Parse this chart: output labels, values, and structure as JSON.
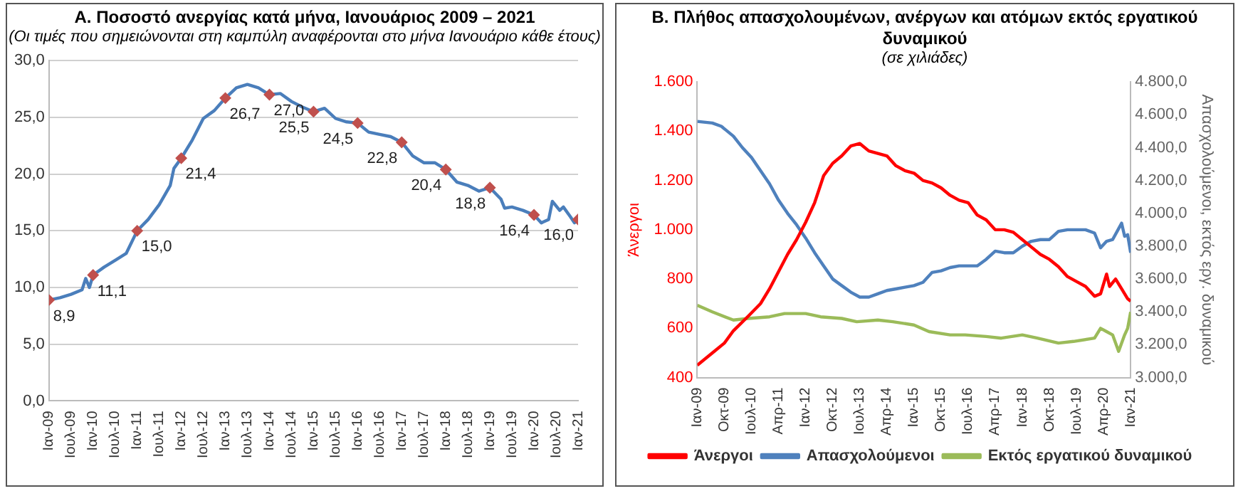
{
  "chart_data": [
    {
      "type": "line",
      "title": "Α. Ποσοστό ανεργίας κατά μήνα, Ιανουάριος 2009 – 2021",
      "subtitle": "(Οι τιμές που σημειώνονται στη καμπύλη αναφέρονται στο μήνα Ιανουάριο κάθε έτους)",
      "xlim": [
        "2009-01",
        "2021-01"
      ],
      "xticks": [
        {
          "value": "2009-01",
          "label": "Ιαν-09"
        },
        {
          "value": "2009-07",
          "label": "Ιουλ-09"
        },
        {
          "value": "2010-01",
          "label": "Ιαν-10"
        },
        {
          "value": "2010-07",
          "label": "Ιουλ-10"
        },
        {
          "value": "2011-01",
          "label": "Ιαν-11"
        },
        {
          "value": "2011-07",
          "label": "Ιουλ-11"
        },
        {
          "value": "2012-01",
          "label": "Ιαν-12"
        },
        {
          "value": "2012-07",
          "label": "Ιουλ-12"
        },
        {
          "value": "2013-01",
          "label": "Ιαν-13"
        },
        {
          "value": "2013-07",
          "label": "Ιουλ-13"
        },
        {
          "value": "2014-01",
          "label": "Ιαν-14"
        },
        {
          "value": "2014-07",
          "label": "Ιουλ-14"
        },
        {
          "value": "2015-01",
          "label": "Ιαν-15"
        },
        {
          "value": "2015-07",
          "label": "Ιουλ-15"
        },
        {
          "value": "2016-01",
          "label": "Ιαν-16"
        },
        {
          "value": "2016-07",
          "label": "Ιουλ-16"
        },
        {
          "value": "2017-01",
          "label": "Ιαν-17"
        },
        {
          "value": "2017-07",
          "label": "Ιουλ-17"
        },
        {
          "value": "2018-01",
          "label": "Ιαν-18"
        },
        {
          "value": "2018-07",
          "label": "Ιουλ-18"
        },
        {
          "value": "2019-01",
          "label": "Ιαν-19"
        },
        {
          "value": "2019-07",
          "label": "Ιουλ-19"
        },
        {
          "value": "2020-01",
          "label": "Ιαν-20"
        },
        {
          "value": "2020-07",
          "label": "Ιουλ-20"
        },
        {
          "value": "2021-01",
          "label": "Ιαν-21"
        }
      ],
      "ylim": [
        0,
        30
      ],
      "yticks": [
        {
          "value": 0,
          "label": "0,0"
        },
        {
          "value": 5,
          "label": "5,0"
        },
        {
          "value": 10,
          "label": "10,0"
        },
        {
          "value": 15,
          "label": "15,0"
        },
        {
          "value": 20,
          "label": "20,0"
        },
        {
          "value": 25,
          "label": "25,0"
        },
        {
          "value": 30,
          "label": "30,0"
        }
      ],
      "grid": "y",
      "legend": false,
      "series": [
        {
          "type": "line",
          "color": "#4a7ebb",
          "marker": "none",
          "x": [
            "2009-01",
            "2009-04",
            "2009-07",
            "2009-10",
            "2009-11",
            "2009-12",
            "2010-01",
            "2010-04",
            "2010-07",
            "2010-10",
            "2011-01",
            "2011-04",
            "2011-07",
            "2011-10",
            "2011-11",
            "2012-01",
            "2012-04",
            "2012-07",
            "2012-10",
            "2013-01",
            "2013-04",
            "2013-07",
            "2013-10",
            "2014-01",
            "2014-04",
            "2014-07",
            "2014-10",
            "2015-01",
            "2015-04",
            "2015-07",
            "2015-10",
            "2016-01",
            "2016-04",
            "2016-07",
            "2016-10",
            "2017-01",
            "2017-04",
            "2017-07",
            "2017-10",
            "2018-01",
            "2018-04",
            "2018-07",
            "2018-10",
            "2019-01",
            "2019-04",
            "2019-05",
            "2019-07",
            "2019-10",
            "2020-01",
            "2020-03",
            "2020-05",
            "2020-06",
            "2020-08",
            "2020-09",
            "2020-11",
            "2020-12",
            "2021-01"
          ],
          "values": [
            8.9,
            9.1,
            9.4,
            9.8,
            10.8,
            10.0,
            11.1,
            11.8,
            12.4,
            13.0,
            15.0,
            16.0,
            17.3,
            19.0,
            20.5,
            21.4,
            23.0,
            24.9,
            25.6,
            26.7,
            27.6,
            27.9,
            27.6,
            27.0,
            27.1,
            26.4,
            25.9,
            25.5,
            25.8,
            24.9,
            24.6,
            24.5,
            23.7,
            23.5,
            23.3,
            22.8,
            21.6,
            21.0,
            21.0,
            20.4,
            19.3,
            19.0,
            18.5,
            18.8,
            17.8,
            17.0,
            17.1,
            16.8,
            16.4,
            15.7,
            16.0,
            17.6,
            16.8,
            17.1,
            16.2,
            15.7,
            16.0
          ]
        },
        {
          "type": "scatter",
          "color": "#c0504d",
          "marker": "diamond",
          "x": [
            "2009-01",
            "2010-01",
            "2011-01",
            "2012-01",
            "2013-01",
            "2014-01",
            "2015-01",
            "2016-01",
            "2017-01",
            "2018-01",
            "2019-01",
            "2020-01",
            "2021-01"
          ],
          "values": [
            8.9,
            11.1,
            15.0,
            21.4,
            26.7,
            27.0,
            25.5,
            24.5,
            22.8,
            20.4,
            18.8,
            16.4,
            16.0
          ],
          "value_labels": [
            "8,9",
            "11,1",
            "15,0",
            "21,4",
            "26,7",
            "27,0",
            "25,5",
            "24,5",
            "22,8",
            "20,4",
            "18,8",
            "16,4",
            "16,0"
          ]
        }
      ]
    },
    {
      "type": "line",
      "title": "Β. Πλήθος απασχολουμένων, ανέργων και ατόμων εκτός εργατικού δυναμικού",
      "subtitle": "(σε χιλιάδες)",
      "ylabel": "Άνεργοι",
      "y2label": "Απασχολούμενοι, εκτός εργ. δυναμικού",
      "xlim": [
        "2009-01",
        "2021-01"
      ],
      "xticks": [
        {
          "value": "2009-01",
          "label": "Ιαν-09"
        },
        {
          "value": "2009-10",
          "label": "Οκτ-09"
        },
        {
          "value": "2010-07",
          "label": "Ιουλ-10"
        },
        {
          "value": "2011-04",
          "label": "Απρ-11"
        },
        {
          "value": "2012-01",
          "label": "Ιαν-12"
        },
        {
          "value": "2012-10",
          "label": "Οκτ-12"
        },
        {
          "value": "2013-07",
          "label": "Ιουλ-13"
        },
        {
          "value": "2014-04",
          "label": "Απρ-14"
        },
        {
          "value": "2015-01",
          "label": "Ιαν-15"
        },
        {
          "value": "2015-10",
          "label": "Οκτ-15"
        },
        {
          "value": "2016-07",
          "label": "Ιουλ-16"
        },
        {
          "value": "2017-04",
          "label": "Απρ-17"
        },
        {
          "value": "2018-01",
          "label": "Ιαν-18"
        },
        {
          "value": "2018-10",
          "label": "Οκτ-18"
        },
        {
          "value": "2019-07",
          "label": "Ιουλ-19"
        },
        {
          "value": "2020-04",
          "label": "Απρ-20"
        },
        {
          "value": "2021-01",
          "label": "Ιαν-21"
        }
      ],
      "ylim": [
        400,
        1600
      ],
      "yticks": [
        400,
        600,
        800,
        {
          "value": 1000,
          "label": "1.000"
        },
        {
          "value": 1200,
          "label": "1.200"
        },
        {
          "value": 1400,
          "label": "1.400"
        },
        {
          "value": 1600,
          "label": "1.600"
        }
      ],
      "y2lim": [
        3000,
        4800
      ],
      "y2ticks": [
        {
          "value": 3000,
          "label": "3.000,0"
        },
        {
          "value": 3200,
          "label": "3.200,0"
        },
        {
          "value": 3400,
          "label": "3.400,0"
        },
        {
          "value": 3600,
          "label": "3.600,0"
        },
        {
          "value": 3800,
          "label": "3.800,0"
        },
        {
          "value": 4000,
          "label": "4.000,0"
        },
        {
          "value": 4200,
          "label": "4.200,0"
        },
        {
          "value": 4400,
          "label": "4.400,0"
        },
        {
          "value": 4600,
          "label": "4.600,0"
        },
        {
          "value": 4800,
          "label": "4.800,0"
        }
      ],
      "grid": false,
      "legend": "bottom",
      "series": [
        {
          "name": "Άνεργοι",
          "color": "#ff0000",
          "axis": "y",
          "x": [
            "2009-01",
            "2009-06",
            "2009-10",
            "2010-01",
            "2010-06",
            "2010-10",
            "2011-01",
            "2011-04",
            "2011-07",
            "2011-10",
            "2012-01",
            "2012-04",
            "2012-07",
            "2012-10",
            "2013-01",
            "2013-04",
            "2013-07",
            "2013-10",
            "2014-01",
            "2014-04",
            "2014-07",
            "2014-10",
            "2015-01",
            "2015-04",
            "2015-07",
            "2015-10",
            "2016-01",
            "2016-04",
            "2016-07",
            "2016-10",
            "2017-01",
            "2017-04",
            "2017-07",
            "2017-10",
            "2018-01",
            "2018-04",
            "2018-07",
            "2018-10",
            "2019-01",
            "2019-04",
            "2019-07",
            "2019-10",
            "2020-01",
            "2020-03",
            "2020-05",
            "2020-06",
            "2020-08",
            "2020-10",
            "2020-12",
            "2021-01"
          ],
          "values": [
            450,
            500,
            540,
            590,
            650,
            700,
            760,
            830,
            900,
            960,
            1030,
            1110,
            1220,
            1270,
            1300,
            1340,
            1350,
            1320,
            1310,
            1300,
            1260,
            1240,
            1230,
            1200,
            1190,
            1170,
            1140,
            1120,
            1110,
            1060,
            1040,
            1000,
            1000,
            990,
            960,
            930,
            900,
            880,
            850,
            810,
            790,
            770,
            730,
            740,
            820,
            770,
            800,
            760,
            720,
            710
          ]
        },
        {
          "name": "Απασχολούμενοι",
          "color": "#4f81bd",
          "axis": "y2",
          "x": [
            "2009-01",
            "2009-06",
            "2009-09",
            "2010-01",
            "2010-04",
            "2010-07",
            "2010-10",
            "2011-01",
            "2011-04",
            "2011-07",
            "2011-10",
            "2012-01",
            "2012-04",
            "2012-07",
            "2012-10",
            "2013-01",
            "2013-04",
            "2013-07",
            "2013-10",
            "2014-01",
            "2014-04",
            "2014-07",
            "2014-10",
            "2015-01",
            "2015-04",
            "2015-07",
            "2015-10",
            "2016-01",
            "2016-04",
            "2016-07",
            "2016-10",
            "2017-01",
            "2017-04",
            "2017-07",
            "2017-10",
            "2018-01",
            "2018-04",
            "2018-07",
            "2018-10",
            "2019-01",
            "2019-04",
            "2019-07",
            "2019-10",
            "2020-01",
            "2020-03",
            "2020-05",
            "2020-07",
            "2020-10",
            "2020-11",
            "2020-12",
            "2021-01"
          ],
          "values": [
            4560,
            4550,
            4530,
            4470,
            4400,
            4340,
            4260,
            4180,
            4080,
            4000,
            3930,
            3850,
            3760,
            3680,
            3600,
            3560,
            3520,
            3490,
            3490,
            3510,
            3530,
            3540,
            3550,
            3560,
            3580,
            3640,
            3650,
            3670,
            3680,
            3680,
            3680,
            3720,
            3770,
            3760,
            3760,
            3800,
            3830,
            3840,
            3840,
            3890,
            3900,
            3900,
            3900,
            3880,
            3790,
            3830,
            3840,
            3940,
            3860,
            3870,
            3760
          ]
        },
        {
          "name": "Εκτός εργατικού δυναμικού",
          "color": "#9bbb59",
          "axis": "y2",
          "x": [
            "2009-01",
            "2009-06",
            "2010-01",
            "2010-06",
            "2011-01",
            "2011-06",
            "2012-01",
            "2012-06",
            "2013-01",
            "2013-06",
            "2014-01",
            "2014-06",
            "2015-01",
            "2015-06",
            "2016-01",
            "2016-06",
            "2017-01",
            "2017-06",
            "2018-01",
            "2018-06",
            "2019-01",
            "2019-06",
            "2020-01",
            "2020-03",
            "2020-05",
            "2020-07",
            "2020-09",
            "2020-11",
            "2020-12",
            "2021-01"
          ],
          "values": [
            3440,
            3400,
            3350,
            3360,
            3370,
            3390,
            3390,
            3370,
            3360,
            3340,
            3350,
            3340,
            3320,
            3280,
            3260,
            3260,
            3250,
            3240,
            3260,
            3240,
            3210,
            3220,
            3240,
            3300,
            3280,
            3260,
            3160,
            3260,
            3300,
            3400
          ]
        }
      ]
    }
  ]
}
